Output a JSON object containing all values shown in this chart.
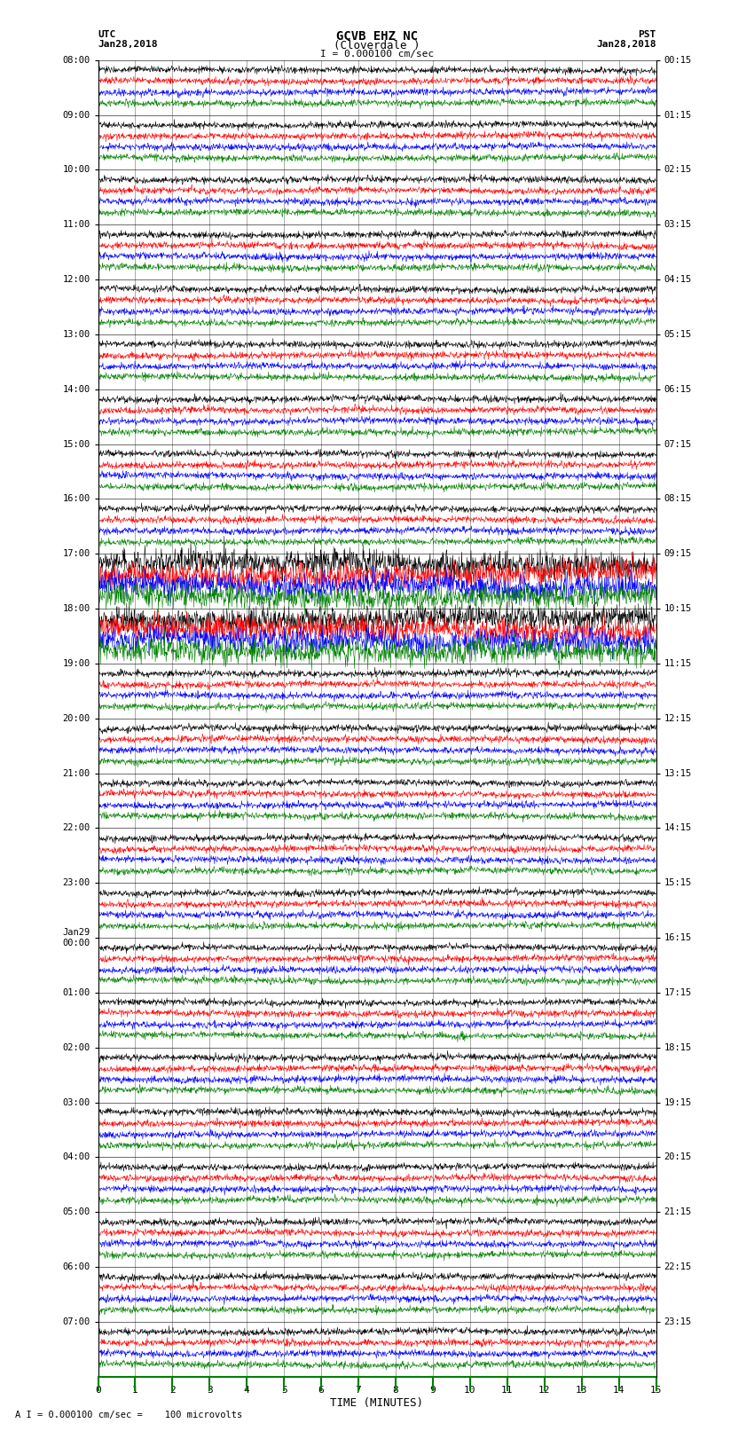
{
  "title_line1": "GCVB EHZ NC",
  "title_line2": "(Cloverdale )",
  "scale_bar_text": "I = 0.000100 cm/sec",
  "left_header_line1": "UTC",
  "left_header_line2": "Jan28,2018",
  "right_header_line1": "PST",
  "right_header_line2": "Jan28,2018",
  "xlabel": "TIME (MINUTES)",
  "bottom_note": "A I = 0.000100 cm/sec =    100 microvolts",
  "x_min": 0,
  "x_max": 15,
  "x_ticks": [
    0,
    1,
    2,
    3,
    4,
    5,
    6,
    7,
    8,
    9,
    10,
    11,
    12,
    13,
    14,
    15
  ],
  "trace_colors": [
    "black",
    "red",
    "blue",
    "green"
  ],
  "background_color": "white",
  "utc_labels": [
    "08:00",
    "09:00",
    "10:00",
    "11:00",
    "12:00",
    "13:00",
    "14:00",
    "15:00",
    "16:00",
    "17:00",
    "18:00",
    "19:00",
    "20:00",
    "21:00",
    "22:00",
    "23:00",
    "Jan29\n00:00",
    "01:00",
    "02:00",
    "03:00",
    "04:00",
    "05:00",
    "06:00",
    "07:00"
  ],
  "pst_labels": [
    "00:15",
    "01:15",
    "02:15",
    "03:15",
    "04:15",
    "05:15",
    "06:15",
    "07:15",
    "08:15",
    "09:15",
    "10:15",
    "11:15",
    "12:15",
    "13:15",
    "14:15",
    "15:15",
    "16:15",
    "17:15",
    "18:15",
    "19:15",
    "20:15",
    "21:15",
    "22:15",
    "23:15"
  ],
  "num_hours": 24,
  "traces_per_hour": 4,
  "noise_amplitude": 0.06,
  "special_hours": [
    9,
    10
  ],
  "special_amplitude": 0.22
}
